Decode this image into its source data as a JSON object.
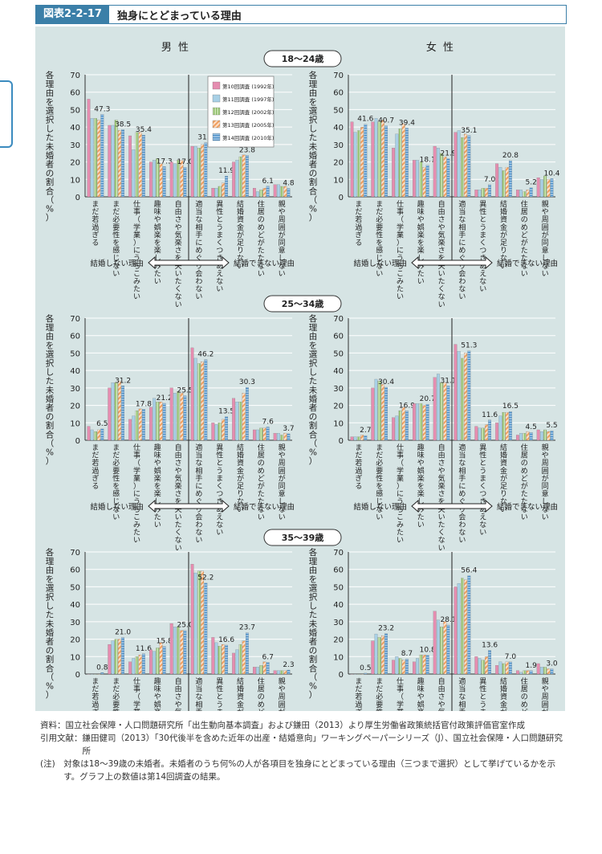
{
  "header": {
    "figure_label": "図表2-2-17",
    "title": "独身にとどまっている理由"
  },
  "columns": {
    "male": "男 性",
    "female": "女 性"
  },
  "colors": {
    "panel_bg": "#d6e4e4",
    "series": [
      "#e58db0",
      "#a8d0e6",
      "#8fbf6a",
      "#f0a060",
      "#4a8fc8"
    ]
  },
  "legend": [
    "第10回調査 (1992年)",
    "第11回調査 (1997年)",
    "第12回調査 (2002年)",
    "第13回調査 (2005年)",
    "第14回調査 (2010年)"
  ],
  "y_axis_label": "各理由を選択した未婚者の割合（%）",
  "arrow_labels": {
    "left": "結婚しない理由",
    "right": "結婚できない理由"
  },
  "chart_data": [
    {
      "type": "bar",
      "age_group": "18〜24歳",
      "sex": "男性",
      "ylim": [
        0,
        70
      ],
      "yticks": [
        0,
        10,
        20,
        30,
        40,
        50,
        60,
        70
      ],
      "categories": [
        "まだ若過ぎる",
        "まだ必要性を感じない",
        "仕事（学業）にうちこみたい",
        "趣味や娯楽を楽しみたい",
        "自由さや気楽さを失いたくない",
        "適当な相手にめぐり会わない",
        "異性とうまくつきあえない",
        "結婚資金が足りない",
        "住居のめどがたたない",
        "親や周囲が同意しない"
      ],
      "series": [
        {
          "name": "第10回調査 (1992年)",
          "values": [
            56,
            41,
            35,
            20,
            20,
            29,
            5,
            20,
            5,
            7
          ]
        },
        {
          "name": "第11回調査 (1997年)",
          "values": [
            45,
            41,
            27,
            21,
            19,
            29,
            5,
            21,
            3,
            7
          ]
        },
        {
          "name": "第12回調査 (2002年)",
          "values": [
            45,
            44,
            37,
            22,
            21,
            28,
            6,
            23,
            4,
            6
          ]
        },
        {
          "name": "第13回調査 (2005年)",
          "values": [
            44,
            38,
            37,
            19,
            21,
            30,
            8,
            24,
            5,
            6
          ]
        },
        {
          "name": "第14回調査 (2010年)",
          "values": [
            47.3,
            38.5,
            35.4,
            17.3,
            17.0,
            31.0,
            11.9,
            23.8,
            6.1,
            4.8
          ]
        }
      ],
      "value_labels": [
        "47.3",
        "38.5",
        "35.4",
        "17.3",
        "17.0",
        "31.0",
        "11.9",
        "23.8",
        "6.1",
        "4.8"
      ]
    },
    {
      "type": "bar",
      "age_group": "18〜24歳",
      "sex": "女性",
      "ylim": [
        0,
        70
      ],
      "yticks": [
        0,
        10,
        20,
        30,
        40,
        50,
        60,
        70
      ],
      "categories": [
        "まだ若過ぎる",
        "まだ必要性を感じない",
        "仕事（学業）にうちこみたい",
        "趣味や娯楽を楽しみたい",
        "自由さや気楽さを失いたくない",
        "適当な相手にめぐり会わない",
        "異性とうまくつきあえない",
        "結婚資金が足りない",
        "住居のめどがたたない",
        "親や周囲が同意しない"
      ],
      "series": [
        {
          "name": "第10回調査 (1992年)",
          "values": [
            43,
            43,
            28,
            21,
            29,
            37,
            4,
            19,
            4,
            11
          ]
        },
        {
          "name": "第11回調査 (1997年)",
          "values": [
            37,
            45,
            36,
            21,
            28,
            38,
            4,
            17,
            4,
            10
          ]
        },
        {
          "name": "第12回調査 (2002年)",
          "values": [
            38,
            43,
            39,
            20,
            25,
            34,
            5,
            15,
            3,
            12
          ]
        },
        {
          "name": "第13回調査 (2005年)",
          "values": [
            40,
            44,
            42,
            17,
            23,
            36,
            5,
            17,
            4,
            10
          ]
        },
        {
          "name": "第14回調査 (2010年)",
          "values": [
            41.6,
            40.7,
            39.4,
            18.1,
            21.9,
            35.1,
            7.0,
            20.8,
            5.2,
            10.4
          ]
        }
      ],
      "value_labels": [
        "41.6",
        "40.7",
        "39.4",
        "18.1",
        "21.9",
        "35.1",
        "7.0",
        "20.8",
        "5.2",
        "10.4"
      ]
    },
    {
      "type": "bar",
      "age_group": "25〜34歳",
      "sex": "男性",
      "ylim": [
        0,
        70
      ],
      "yticks": [
        0,
        10,
        20,
        30,
        40,
        50,
        60,
        70
      ],
      "categories": [
        "まだ若過ぎる",
        "まだ必要性を感じない",
        "仕事（学業）にうちこみたい",
        "趣味や娯楽を楽しみたい",
        "自由さや気楽さを失いたくない",
        "適当な相手にめぐり会わない",
        "異性とうまくつきあえない",
        "結婚資金が足りない",
        "住居のめどがたたない",
        "親や周囲が同意しない"
      ],
      "series": [
        {
          "name": "第10回調査 (1992年)",
          "values": [
            8,
            30,
            12,
            19,
            30,
            53,
            10,
            24,
            6,
            4
          ]
        },
        {
          "name": "第11回調査 (1997年)",
          "values": [
            6,
            33,
            14,
            24,
            27,
            47,
            9,
            22,
            6,
            4
          ]
        },
        {
          "name": "第12回調査 (2002年)",
          "values": [
            5,
            33,
            17,
            22,
            28,
            44,
            10,
            22,
            7,
            3
          ]
        },
        {
          "name": "第13回調査 (2005年)",
          "values": [
            6,
            34,
            18,
            22,
            27,
            45,
            12,
            27,
            7,
            4
          ]
        },
        {
          "name": "第14回調査 (2010年)",
          "values": [
            6.5,
            31.2,
            17.8,
            21.2,
            25.5,
            46.2,
            13.5,
            30.3,
            7.6,
            3.7
          ]
        }
      ],
      "value_labels": [
        "6.5",
        "31.2",
        "17.8",
        "21.2",
        "25.5",
        "46.2",
        "13.5",
        "30.3",
        "7.6",
        "3.7"
      ]
    },
    {
      "type": "bar",
      "age_group": "25〜34歳",
      "sex": "女性",
      "ylim": [
        0,
        70
      ],
      "yticks": [
        0,
        10,
        20,
        30,
        40,
        50,
        60,
        70
      ],
      "categories": [
        "まだ若過ぎる",
        "まだ必要性を感じない",
        "仕事（学業）にうちこみたい",
        "趣味や娯楽を楽しみたい",
        "自由さや気楽さを失いたくない",
        "適当な相手にめぐり会わない",
        "異性とうまくつきあえない",
        "結婚資金が足りない",
        "住居のめどがたたない",
        "親や周囲が同意しない"
      ],
      "series": [
        {
          "name": "第10回調査 (1992年)",
          "values": [
            2,
            30,
            13,
            21,
            36,
            55,
            8,
            10,
            3,
            6
          ]
        },
        {
          "name": "第11回調査 (1997年)",
          "values": [
            2,
            35,
            14,
            21,
            38,
            51,
            7,
            14,
            4,
            5
          ]
        },
        {
          "name": "第12回調査 (2002年)",
          "values": [
            2,
            34,
            17,
            21,
            33,
            47,
            7,
            16,
            4,
            6
          ]
        },
        {
          "name": "第13回調査 (2005年)",
          "values": [
            3,
            32,
            19,
            20,
            33,
            50,
            9,
            16,
            5,
            5
          ]
        },
        {
          "name": "第14回調査 (2010年)",
          "values": [
            2.7,
            30.4,
            16.9,
            20.7,
            31.1,
            51.3,
            11.6,
            16.5,
            4.5,
            5.5
          ]
        }
      ],
      "value_labels": [
        "2.7",
        "30.4",
        "16.9",
        "20.7",
        "31.1",
        "51.3",
        "11.6",
        "16.5",
        "4.5",
        "5.5"
      ]
    },
    {
      "type": "bar",
      "age_group": "35〜39歳",
      "sex": "男性",
      "ylim": [
        0,
        70
      ],
      "yticks": [
        0,
        10,
        20,
        30,
        40,
        50,
        60,
        70
      ],
      "categories": [
        "まだ若過ぎる",
        "まだ必要性を感じない",
        "仕事（学業）にうちこみたい",
        "趣味や娯楽を楽しみたい",
        "自由さや気楽さを失いたくない",
        "適当な相手にめぐり会わない",
        "異性とうまくつきあえない",
        "結婚資金が足りない",
        "住居のめどがたたない",
        "親や周囲が同意しない"
      ],
      "series": [
        {
          "name": "第10回調査 (1992年)",
          "values": [
            0,
            17,
            7,
            14,
            29,
            63,
            21,
            12,
            4,
            2
          ]
        },
        {
          "name": "第11回調査 (1997年)",
          "values": [
            0,
            19,
            9,
            13,
            27,
            58,
            18,
            14,
            4,
            2
          ]
        },
        {
          "name": "第12回調査 (2002年)",
          "values": [
            0,
            20,
            10,
            15,
            27,
            59,
            16,
            17,
            5,
            2
          ]
        },
        {
          "name": "第13回調査 (2005年)",
          "values": [
            0,
            20,
            11,
            18,
            25,
            59,
            17,
            19,
            7,
            2
          ]
        },
        {
          "name": "第14回調査 (2010年)",
          "values": [
            0.8,
            21.0,
            11.6,
            15.8,
            25.0,
            52.2,
            16.6,
            23.7,
            6.7,
            2.3
          ]
        }
      ],
      "value_labels": [
        "0.8",
        "21.0",
        "11.6",
        "15.8",
        "25.0",
        "52.2",
        "16.6",
        "23.7",
        "6.7",
        "2.3"
      ]
    },
    {
      "type": "bar",
      "age_group": "35〜39歳",
      "sex": "女性",
      "ylim": [
        0,
        70
      ],
      "yticks": [
        0,
        10,
        20,
        30,
        40,
        50,
        60,
        70
      ],
      "categories": [
        "まだ若過ぎる",
        "まだ必要性を感じない",
        "仕事（学業）にうちこみたい",
        "趣味や娯楽を楽しみたい",
        "自由さや気楽さを失いたくない",
        "適当な相手にめぐり会わない",
        "異性とうまくつきあえない",
        "結婚資金が足りない",
        "住居のめどがたたない",
        "親や周囲が同意しない"
      ],
      "series": [
        {
          "name": "第10回調査 (1992年)",
          "values": [
            0,
            19,
            8,
            7,
            36,
            50,
            10,
            5,
            2,
            6
          ]
        },
        {
          "name": "第11回調査 (1997年)",
          "values": [
            0,
            23,
            10,
            9,
            31,
            52,
            9,
            7,
            1,
            4
          ]
        },
        {
          "name": "第12回調査 (2002年)",
          "values": [
            0,
            21,
            9,
            11,
            27,
            55,
            8,
            6,
            2,
            4
          ]
        },
        {
          "name": "第13回調査 (2005年)",
          "values": [
            0,
            22,
            8,
            11,
            30,
            54,
            10,
            7,
            2,
            3
          ]
        },
        {
          "name": "第14回調査 (2010年)",
          "values": [
            0.5,
            23.2,
            8.7,
            10.8,
            28.1,
            56.4,
            13.6,
            7.0,
            1.9,
            3.0
          ]
        }
      ],
      "value_labels": [
        "0.5",
        "23.2",
        "8.7",
        "10.8",
        "28.1",
        "56.4",
        "13.6",
        "7.0",
        "1.9",
        "3.0"
      ]
    }
  ],
  "notes": [
    {
      "label": "資料：",
      "text": "国立社会保障・人口問題研究所「出生動向基本調査」および鎌田（2013）より厚生労働省政策統括官付政策評価官室作成"
    },
    {
      "label": "引用文献：",
      "text": "鎌田健司（2013）「30代後半を含めた近年の出産・結婚意向」ワーキングペーパーシリーズ（J）、国立社会保障・人口問題研究所"
    },
    {
      "label": "(注)　",
      "text": "対象は18～39歳の未婚者。未婚者のうち何%の人が各項目を独身にとどまっている理由（三つまで選択）として挙げているかを示す。グラフ上の数値は第14回調査の結果。"
    }
  ]
}
